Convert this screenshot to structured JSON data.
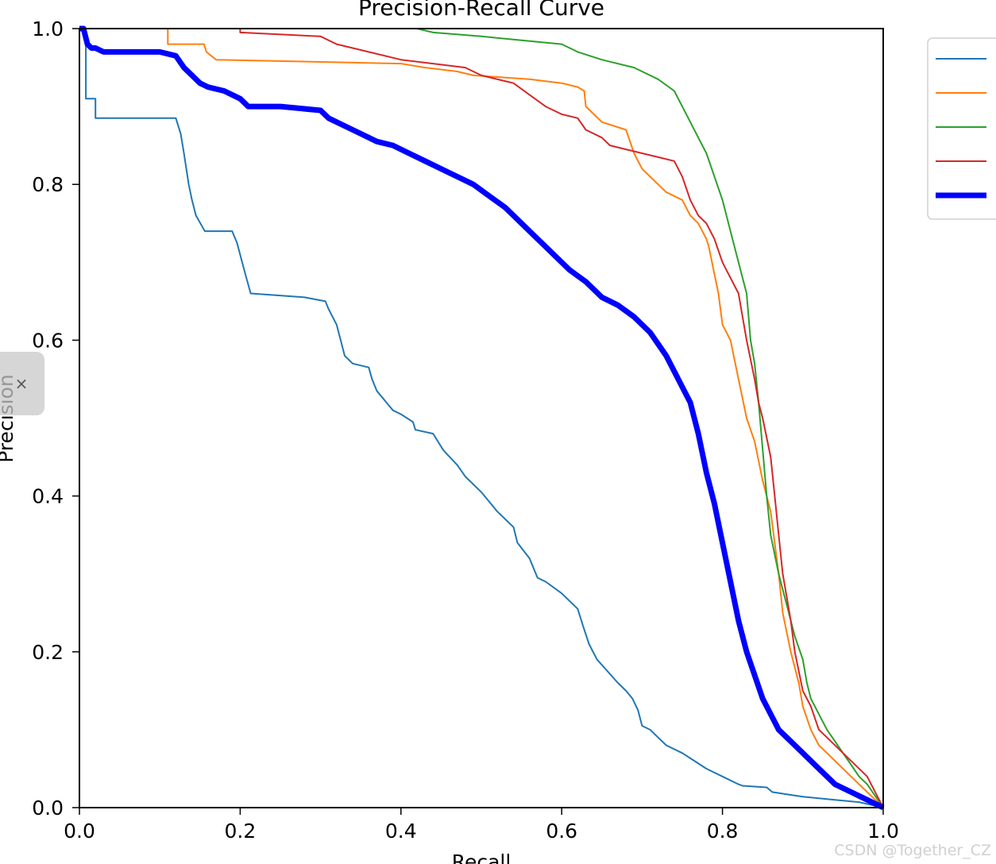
{
  "chart_data": {
    "type": "line",
    "title": "Precision-Recall Curve",
    "xlabel": "Recall",
    "ylabel": "Precision",
    "xlim": [
      0,
      1
    ],
    "ylim": [
      0,
      1
    ],
    "xticks": [
      "0.0",
      "0.2",
      "0.4",
      "0.6",
      "0.8",
      "1.0"
    ],
    "yticks": [
      "0.0",
      "0.2",
      "0.4",
      "0.6",
      "0.8",
      "1.0"
    ],
    "grid": false,
    "legend_position": "upper-right-outside",
    "series": [
      {
        "color": "#1f77b4",
        "width": 2,
        "x": [
          0.0,
          0.008,
          0.008,
          0.02,
          0.02,
          0.12,
          0.126,
          0.13,
          0.136,
          0.14,
          0.145,
          0.156,
          0.158,
          0.19,
          0.196,
          0.205,
          0.213,
          0.28,
          0.306,
          0.31,
          0.32,
          0.325,
          0.33,
          0.34,
          0.36,
          0.364,
          0.37,
          0.39,
          0.4,
          0.415,
          0.418,
          0.44,
          0.452,
          0.456,
          0.47,
          0.48,
          0.5,
          0.52,
          0.54,
          0.545,
          0.56,
          0.57,
          0.58,
          0.6,
          0.62,
          0.626,
          0.634,
          0.644,
          0.657,
          0.67,
          0.68,
          0.688,
          0.695,
          0.7,
          0.71,
          0.72,
          0.73,
          0.75,
          0.765,
          0.78,
          0.8,
          0.82,
          0.825,
          0.855,
          0.862,
          0.88,
          0.9,
          0.92,
          0.94,
          0.97,
          1.0
        ],
        "y": [
          1.0,
          1.0,
          0.91,
          0.91,
          0.885,
          0.885,
          0.865,
          0.84,
          0.8,
          0.78,
          0.76,
          0.74,
          0.74,
          0.74,
          0.725,
          0.69,
          0.66,
          0.655,
          0.65,
          0.64,
          0.62,
          0.6,
          0.58,
          0.57,
          0.565,
          0.55,
          0.535,
          0.51,
          0.505,
          0.495,
          0.485,
          0.48,
          0.46,
          0.455,
          0.44,
          0.425,
          0.405,
          0.38,
          0.36,
          0.34,
          0.32,
          0.295,
          0.29,
          0.275,
          0.255,
          0.235,
          0.21,
          0.19,
          0.175,
          0.16,
          0.15,
          0.14,
          0.125,
          0.105,
          0.1,
          0.09,
          0.08,
          0.07,
          0.06,
          0.05,
          0.04,
          0.03,
          0.028,
          0.026,
          0.02,
          0.017,
          0.014,
          0.012,
          0.01,
          0.007,
          0.0
        ]
      },
      {
        "color": "#ff7f0e",
        "width": 2,
        "x": [
          0.11,
          0.11,
          0.155,
          0.158,
          0.17,
          0.4,
          0.43,
          0.47,
          0.49,
          0.56,
          0.6,
          0.62,
          0.628,
          0.63,
          0.64,
          0.65,
          0.68,
          0.69,
          0.7,
          0.72,
          0.73,
          0.75,
          0.76,
          0.77,
          0.78,
          0.783,
          0.795,
          0.8,
          0.81,
          0.82,
          0.83,
          0.84,
          0.85,
          0.86,
          0.87,
          0.875,
          0.885,
          0.895,
          0.9,
          0.91,
          0.92,
          0.93,
          0.94,
          0.96,
          0.98,
          1.0
        ],
        "y": [
          1.0,
          0.98,
          0.98,
          0.97,
          0.96,
          0.955,
          0.95,
          0.945,
          0.94,
          0.935,
          0.93,
          0.925,
          0.92,
          0.9,
          0.89,
          0.88,
          0.87,
          0.84,
          0.82,
          0.8,
          0.79,
          0.78,
          0.76,
          0.75,
          0.73,
          0.72,
          0.66,
          0.62,
          0.6,
          0.55,
          0.5,
          0.47,
          0.42,
          0.38,
          0.3,
          0.25,
          0.2,
          0.16,
          0.13,
          0.1,
          0.08,
          0.07,
          0.06,
          0.04,
          0.02,
          0.0
        ]
      },
      {
        "color": "#2ca02c",
        "width": 2,
        "x": [
          0.42,
          0.44,
          0.5,
          0.55,
          0.6,
          0.62,
          0.65,
          0.69,
          0.72,
          0.74,
          0.75,
          0.76,
          0.77,
          0.78,
          0.79,
          0.8,
          0.81,
          0.82,
          0.83,
          0.835,
          0.84,
          0.845,
          0.85,
          0.855,
          0.86,
          0.87,
          0.88,
          0.89,
          0.9,
          0.905,
          0.91,
          0.92,
          0.93,
          0.94,
          0.95,
          0.96,
          0.97,
          0.98,
          0.99,
          1.0
        ],
        "y": [
          1.0,
          0.995,
          0.99,
          0.985,
          0.98,
          0.97,
          0.96,
          0.95,
          0.935,
          0.92,
          0.9,
          0.88,
          0.86,
          0.84,
          0.81,
          0.78,
          0.74,
          0.7,
          0.66,
          0.6,
          0.57,
          0.52,
          0.46,
          0.4,
          0.35,
          0.3,
          0.26,
          0.22,
          0.19,
          0.16,
          0.14,
          0.12,
          0.1,
          0.085,
          0.07,
          0.055,
          0.04,
          0.03,
          0.015,
          0.0
        ]
      },
      {
        "color": "#d62728",
        "width": 2,
        "x": [
          0.2,
          0.2,
          0.3,
          0.32,
          0.36,
          0.4,
          0.44,
          0.48,
          0.5,
          0.54,
          0.56,
          0.58,
          0.6,
          0.62,
          0.63,
          0.65,
          0.66,
          0.68,
          0.7,
          0.72,
          0.74,
          0.75,
          0.76,
          0.77,
          0.78,
          0.79,
          0.8,
          0.82,
          0.83,
          0.84,
          0.845,
          0.85,
          0.86,
          0.865,
          0.87,
          0.875,
          0.88,
          0.885,
          0.89,
          0.9,
          0.91,
          0.92,
          0.93,
          0.95,
          0.98,
          1.0
        ],
        "y": [
          1.0,
          0.995,
          0.99,
          0.98,
          0.97,
          0.96,
          0.955,
          0.95,
          0.94,
          0.93,
          0.915,
          0.9,
          0.89,
          0.885,
          0.87,
          0.86,
          0.85,
          0.845,
          0.84,
          0.835,
          0.83,
          0.81,
          0.78,
          0.76,
          0.75,
          0.73,
          0.7,
          0.66,
          0.6,
          0.55,
          0.52,
          0.5,
          0.45,
          0.4,
          0.35,
          0.3,
          0.27,
          0.24,
          0.2,
          0.15,
          0.13,
          0.1,
          0.09,
          0.07,
          0.04,
          0.0
        ]
      },
      {
        "color": "#0000ff",
        "width": 7,
        "x": [
          0.0,
          0.005,
          0.01,
          0.015,
          0.02,
          0.03,
          0.05,
          0.1,
          0.12,
          0.13,
          0.14,
          0.15,
          0.16,
          0.18,
          0.2,
          0.21,
          0.22,
          0.25,
          0.3,
          0.31,
          0.33,
          0.35,
          0.37,
          0.39,
          0.41,
          0.43,
          0.45,
          0.47,
          0.49,
          0.51,
          0.53,
          0.55,
          0.57,
          0.59,
          0.61,
          0.63,
          0.65,
          0.67,
          0.69,
          0.71,
          0.73,
          0.74,
          0.75,
          0.76,
          0.77,
          0.78,
          0.79,
          0.8,
          0.81,
          0.82,
          0.83,
          0.84,
          0.85,
          0.86,
          0.87,
          0.88,
          0.89,
          0.9,
          0.91,
          0.92,
          0.93,
          0.94,
          0.95,
          0.96,
          0.97,
          0.98,
          0.99,
          1.0
        ],
        "y": [
          1.0,
          1.0,
          0.98,
          0.975,
          0.975,
          0.97,
          0.97,
          0.97,
          0.965,
          0.95,
          0.94,
          0.93,
          0.925,
          0.92,
          0.91,
          0.9,
          0.9,
          0.9,
          0.895,
          0.885,
          0.875,
          0.865,
          0.855,
          0.85,
          0.84,
          0.83,
          0.82,
          0.81,
          0.8,
          0.785,
          0.77,
          0.75,
          0.73,
          0.71,
          0.69,
          0.675,
          0.655,
          0.645,
          0.63,
          0.61,
          0.58,
          0.56,
          0.54,
          0.52,
          0.48,
          0.43,
          0.39,
          0.34,
          0.29,
          0.24,
          0.2,
          0.17,
          0.14,
          0.12,
          0.1,
          0.09,
          0.08,
          0.07,
          0.06,
          0.05,
          0.04,
          0.03,
          0.025,
          0.02,
          0.015,
          0.01,
          0.005,
          0.0
        ]
      }
    ]
  },
  "watermark": "CSDN @Together_CZ",
  "side_handle_icon": "×"
}
